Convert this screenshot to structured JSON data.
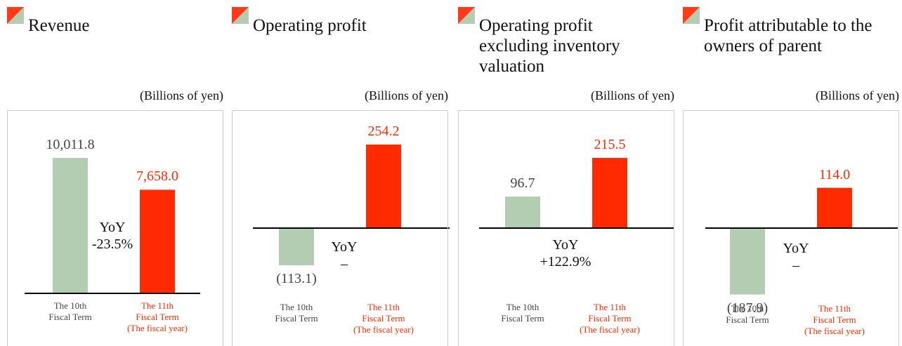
{
  "chart_data": [
    {
      "type": "bar",
      "title": "Revenue",
      "unit": "(Billions of yen)",
      "categories": [
        "The 10th\nFiscal Term",
        "The 11th\nFiscal Term\n(The fiscal year)"
      ],
      "values": [
        10011.8,
        7658.0
      ],
      "value_labels": [
        "10,011.8",
        "7,658.0"
      ],
      "colors": [
        "#b3cdb3",
        "#ff2a00"
      ],
      "annotation": "YoY\n-23.5%"
    },
    {
      "type": "bar",
      "title": "Operating profit",
      "unit": "(Billions of yen)",
      "categories": [
        "The 10th\nFiscal Term",
        "The 11th\nFiscal Term\n(The fiscal year)"
      ],
      "values": [
        -113.1,
        254.2
      ],
      "value_labels": [
        "(113.1)",
        "254.2"
      ],
      "colors": [
        "#b3cdb3",
        "#ff2a00"
      ],
      "annotation": "YoY\n–"
    },
    {
      "type": "bar",
      "title": "Operating profit excluding inventory valuation",
      "unit": "(Billions of yen)",
      "categories": [
        "The 10th\nFiscal Term",
        "The 11th\nFiscal Term\n(The fiscal year)"
      ],
      "values": [
        96.7,
        215.5
      ],
      "value_labels": [
        "96.7",
        "215.5"
      ],
      "colors": [
        "#b3cdb3",
        "#ff2a00"
      ],
      "annotation": "YoY\n+122.9%"
    },
    {
      "type": "bar",
      "title": "Profit attributable to the owners of parent",
      "unit": "(Billions of yen)",
      "categories": [
        "The 10th\nFiscal Term",
        "The 11th\nFiscal Term\n(The fiscal year)"
      ],
      "values": [
        -187.9,
        114.0
      ],
      "value_labels": [
        "(187.9)",
        "114.0"
      ],
      "colors": [
        "#b3cdb3",
        "#ff2a00"
      ],
      "annotation": "YoY\n–"
    }
  ]
}
